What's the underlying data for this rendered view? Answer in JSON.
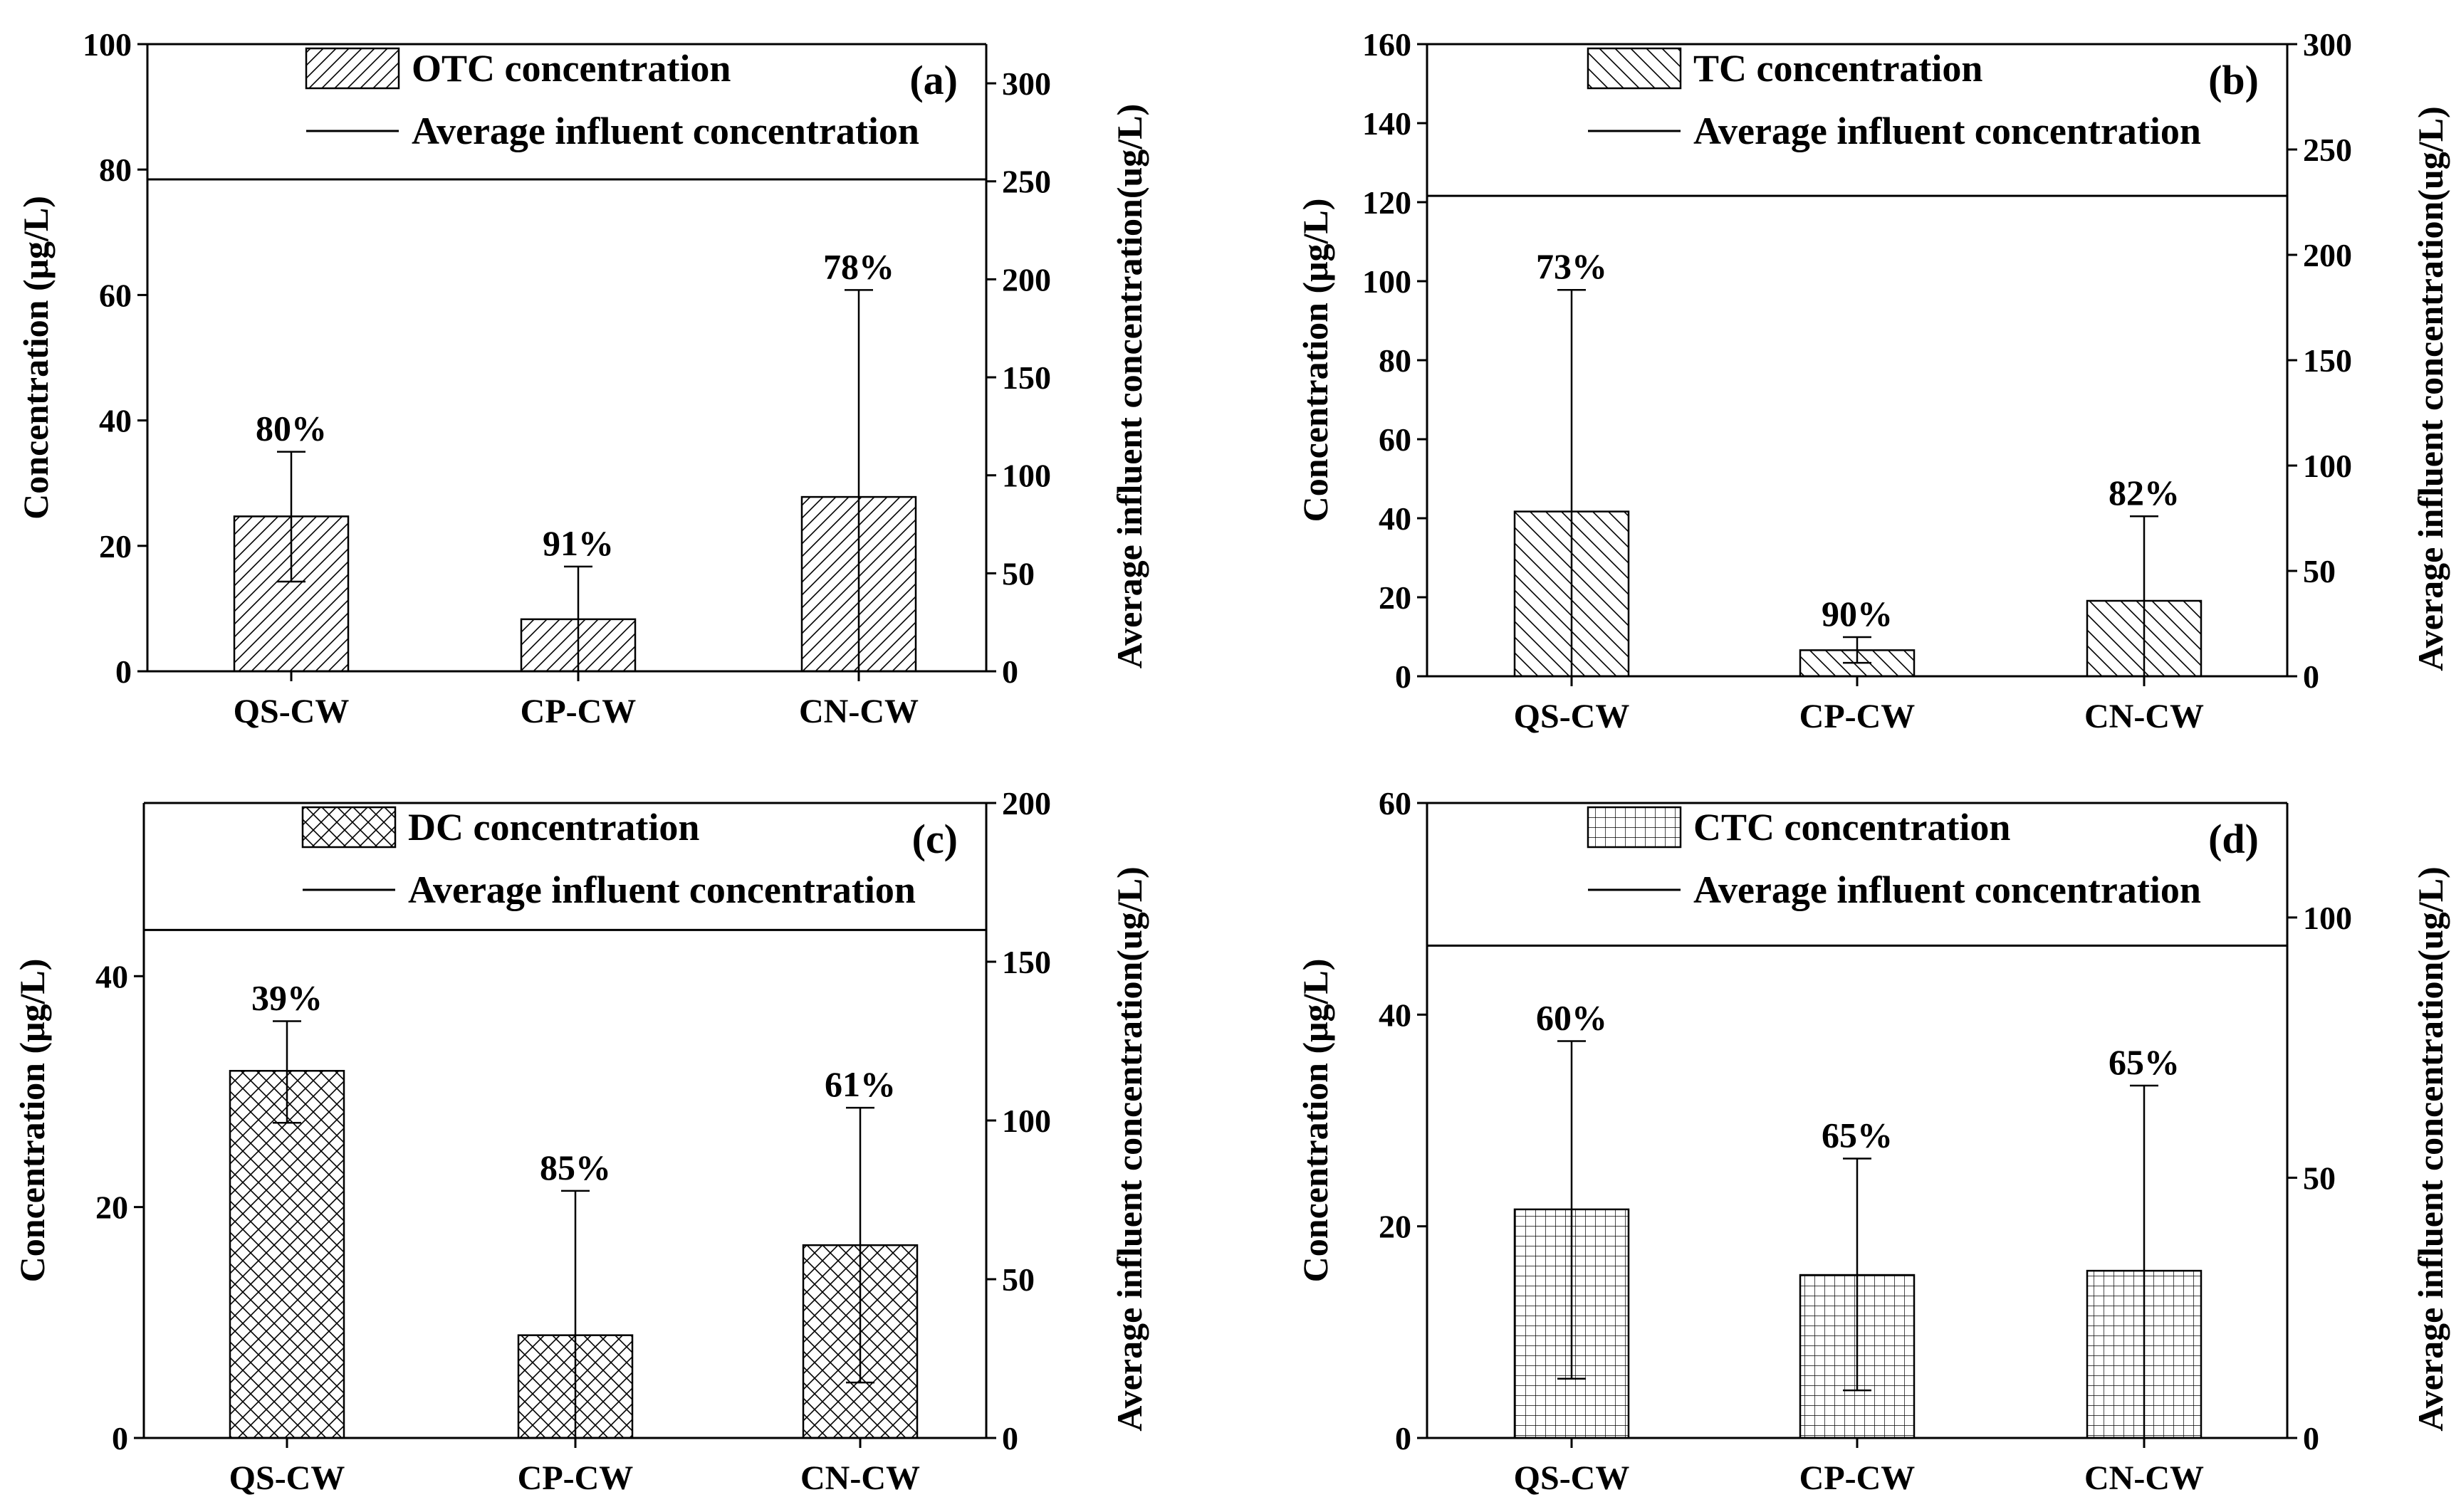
{
  "chart_data": [
    {
      "panel": "(a)",
      "type": "bar",
      "categories": [
        "QS-CW",
        "CP-CW",
        "CN-CW"
      ],
      "values": [
        24.7,
        8.3,
        27.8
      ],
      "error_upper": [
        35,
        16.7,
        60.8
      ],
      "error_lower": [
        14.3,
        0,
        0
      ],
      "removal_labels": [
        "80%",
        "91%",
        "78%"
      ],
      "pattern": "diag-forward",
      "ylabel": "Concentration (μg/L)",
      "ylim": [
        0,
        100
      ],
      "yticks": [
        0,
        20,
        40,
        60,
        80,
        100
      ],
      "y2label": "Average influent concentration(ug/L)",
      "y2lim": [
        0,
        320
      ],
      "y2ticks": [
        0,
        50,
        100,
        150,
        200,
        250,
        300
      ],
      "influent_average": 251,
      "legend": [
        "OTC concentration",
        "Average influent concentration"
      ]
    },
    {
      "panel": "(b)",
      "type": "bar",
      "categories": [
        "QS-CW",
        "CP-CW",
        "CN-CW"
      ],
      "values": [
        41.7,
        6.6,
        19.1
      ],
      "error_upper": [
        97.8,
        9.9,
        40.5
      ],
      "error_lower": [
        0,
        3.4,
        0
      ],
      "removal_labels": [
        "73%",
        "90%",
        "82%"
      ],
      "pattern": "diag-back",
      "ylabel": "Concentration (μg/L)",
      "ylim": [
        0,
        160
      ],
      "yticks": [
        0,
        20,
        40,
        60,
        80,
        100,
        120,
        140,
        160
      ],
      "y2label": "Average influent concentration(ug/L)",
      "y2lim": [
        0,
        300
      ],
      "y2ticks": [
        0,
        50,
        100,
        150,
        200,
        250,
        300
      ],
      "influent_average": 228,
      "legend": [
        "TC concentration",
        "Average influent concentration"
      ]
    },
    {
      "panel": "(c)",
      "type": "bar",
      "categories": [
        "QS-CW",
        "CP-CW",
        "CN-CW"
      ],
      "values": [
        31.8,
        8.9,
        16.7
      ],
      "error_upper": [
        36.1,
        21.4,
        28.6
      ],
      "error_lower": [
        27.3,
        0,
        4.8
      ],
      "removal_labels": [
        "39%",
        "85%",
        "61%"
      ],
      "pattern": "crosshatch",
      "ylabel": "Concentration (μg/L)",
      "ylim": [
        0,
        55
      ],
      "yticks": [
        0,
        20,
        40
      ],
      "y2label": "Average influent concentration(ug/L)",
      "y2lim": [
        0,
        200
      ],
      "y2ticks": [
        0,
        50,
        100,
        150,
        200
      ],
      "influent_average": 160,
      "legend": [
        "DC concentration",
        "Average influent concentration"
      ]
    },
    {
      "panel": "(d)",
      "type": "bar",
      "categories": [
        "QS-CW",
        "CP-CW",
        "CN-CW"
      ],
      "values": [
        21.6,
        15.4,
        15.8
      ],
      "error_upper": [
        37.5,
        26.4,
        33.3
      ],
      "error_lower": [
        5.6,
        4.5,
        0
      ],
      "removal_labels": [
        "60%",
        "65%",
        "65%"
      ],
      "pattern": "grid",
      "ylabel": "Concentration (μg/L)",
      "ylim": [
        0,
        60
      ],
      "yticks": [
        0,
        20,
        40,
        60
      ],
      "y2label": "Average influent concentration(ug/L)",
      "y2lim": [
        0,
        122
      ],
      "y2ticks": [
        0,
        50,
        100
      ],
      "influent_average": 94.6,
      "legend": [
        "CTC concentration",
        "Average influent concentration"
      ]
    }
  ]
}
